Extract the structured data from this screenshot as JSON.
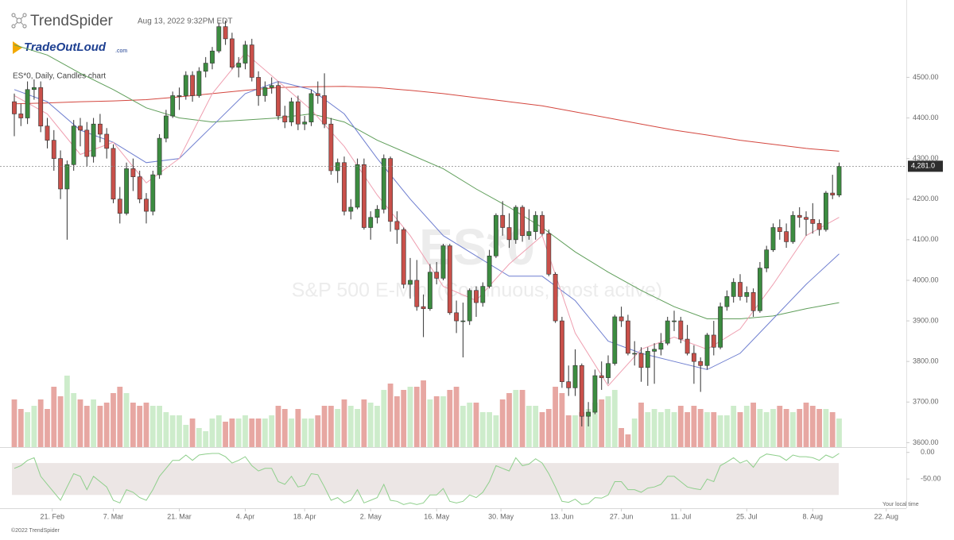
{
  "chart_data": {
    "type": "candlestick",
    "brand": "TrendSpider",
    "timestamp": "Aug 13, 2022 9:32PM EDT",
    "logo": "TradeOutLoud",
    "logo_suffix": ".com",
    "subtitle": "ES*0, Daily, Candles chart",
    "watermark": "ES*0",
    "watermark_subtitle": "S&P 500 E-Mini (Continuous, most active)",
    "x": [
      "Feb 11",
      "Feb 14",
      "Feb 15",
      "Feb 16",
      "Feb 17",
      "Feb 18",
      "Feb 22",
      "Feb 23",
      "Feb 24",
      "Feb 25",
      "Feb 28",
      "Mar 1",
      "Mar 2",
      "Mar 3",
      "Mar 4",
      "Mar 7",
      "Mar 8",
      "Mar 9",
      "Mar 10",
      "Mar 11",
      "Mar 14",
      "Mar 15",
      "Mar 16",
      "Mar 17",
      "Mar 18",
      "Mar 21",
      "Mar 22",
      "Mar 23",
      "Mar 24",
      "Mar 25",
      "Mar 28",
      "Mar 29",
      "Mar 30",
      "Mar 31",
      "Apr 1",
      "Apr 4",
      "Apr 5",
      "Apr 6",
      "Apr 7",
      "Apr 8",
      "Apr 11",
      "Apr 12",
      "Apr 13",
      "Apr 14",
      "Apr 18",
      "Apr 19",
      "Apr 20",
      "Apr 21",
      "Apr 22",
      "Apr 25",
      "Apr 26",
      "Apr 27",
      "Apr 28",
      "Apr 29",
      "May 2",
      "May 3",
      "May 4",
      "May 5",
      "May 6",
      "May 9",
      "May 10",
      "May 11",
      "May 12",
      "May 13",
      "May 16",
      "May 17",
      "May 18",
      "May 19",
      "May 20",
      "May 23",
      "May 24",
      "May 25",
      "May 26",
      "May 27",
      "May 31",
      "Jun 1",
      "Jun 2",
      "Jun 3",
      "Jun 6",
      "Jun 7",
      "Jun 8",
      "Jun 9",
      "Jun 10",
      "Jun 13",
      "Jun 14",
      "Jun 15",
      "Jun 16",
      "Jun 17",
      "Jun 21",
      "Jun 22",
      "Jun 23",
      "Jun 24",
      "Jun 27",
      "Jun 28",
      "Jun 29",
      "Jun 30",
      "Jul 1",
      "Jul 5",
      "Jul 6",
      "Jul 7",
      "Jul 8",
      "Jul 11",
      "Jul 12",
      "Jul 13",
      "Jul 14",
      "Jul 15",
      "Jul 18",
      "Jul 19",
      "Jul 20",
      "Jul 21",
      "Jul 22",
      "Jul 25",
      "Jul 26",
      "Jul 27",
      "Jul 28",
      "Jul 29",
      "Aug 1",
      "Aug 2",
      "Aug 3",
      "Aug 4",
      "Aug 5",
      "Aug 8",
      "Aug 9",
      "Aug 10",
      "Aug 11",
      "Aug 12"
    ],
    "open": [
      4440,
      4410,
      4400,
      4470,
      4475,
      4380,
      4345,
      4300,
      4225,
      4285,
      4380,
      4370,
      4305,
      4385,
      4360,
      4325,
      4200,
      4165,
      4275,
      4255,
      4200,
      4170,
      4260,
      4350,
      4405,
      4455,
      4455,
      4505,
      4455,
      4515,
      4535,
      4565,
      4625,
      4595,
      4525,
      4535,
      4580,
      4500,
      4455,
      4475,
      4480,
      4405,
      4390,
      4440,
      4385,
      4390,
      4460,
      4455,
      4385,
      4270,
      4290,
      4170,
      4180,
      4285,
      4130,
      4155,
      4175,
      4300,
      4145,
      4125,
      3990,
      4000,
      3935,
      3930,
      4020,
      4005,
      4085,
      3920,
      3900,
      3900,
      3975,
      3945,
      3985,
      4060,
      4160,
      4130,
      4100,
      4180,
      4110,
      4120,
      4160,
      4115,
      4015,
      3900,
      3750,
      3735,
      3790,
      3665,
      3675,
      3765,
      3760,
      3795,
      3910,
      3900,
      3820,
      3820,
      3785,
      3825,
      3830,
      3845,
      3900,
      3900,
      3855,
      3820,
      3800,
      3790,
      3865,
      3835,
      3935,
      3960,
      3995,
      3960,
      3970,
      3925,
      4030,
      4075,
      4130,
      4120,
      4095,
      4160,
      4155,
      4150,
      4140,
      4125,
      4215,
      4210
    ],
    "high": [
      4460,
      4435,
      4490,
      4495,
      4490,
      4400,
      4370,
      4320,
      4295,
      4395,
      4400,
      4390,
      4400,
      4410,
      4375,
      4335,
      4230,
      4290,
      4300,
      4270,
      4215,
      4270,
      4360,
      4420,
      4465,
      4475,
      4515,
      4515,
      4525,
      4550,
      4575,
      4635,
      4640,
      4610,
      4550,
      4590,
      4595,
      4515,
      4490,
      4500,
      4490,
      4430,
      4450,
      4455,
      4405,
      4470,
      4490,
      4510,
      4400,
      4300,
      4305,
      4200,
      4300,
      4300,
      4170,
      4185,
      4310,
      4305,
      4170,
      4130,
      4055,
      4050,
      3965,
      4040,
      4045,
      4090,
      4090,
      3950,
      3945,
      3980,
      3985,
      3995,
      4075,
      4165,
      4195,
      4165,
      4185,
      4185,
      4175,
      4170,
      4170,
      4125,
      4020,
      3910,
      3790,
      3830,
      3795,
      3700,
      3780,
      3800,
      3815,
      3915,
      3935,
      3915,
      3850,
      3835,
      3835,
      3845,
      3870,
      3910,
      3925,
      3910,
      3890,
      3840,
      3810,
      3870,
      3900,
      3945,
      3975,
      4005,
      4015,
      3985,
      3980,
      4045,
      4085,
      4140,
      4150,
      4140,
      4170,
      4180,
      4170,
      4190,
      4150,
      4220,
      4260,
      4290
    ],
    "low": [
      4355,
      4380,
      4385,
      4445,
      4365,
      4325,
      4270,
      4200,
      4100,
      4270,
      4330,
      4280,
      4290,
      4340,
      4300,
      4190,
      4140,
      4160,
      4220,
      4190,
      4140,
      4160,
      4250,
      4340,
      4400,
      4420,
      4445,
      4440,
      4450,
      4500,
      4520,
      4560,
      4580,
      4520,
      4500,
      4520,
      4490,
      4430,
      4440,
      4460,
      4395,
      4375,
      4380,
      4370,
      4370,
      4380,
      4435,
      4375,
      4260,
      4240,
      4160,
      4150,
      4175,
      4125,
      4100,
      4140,
      4165,
      4120,
      4090,
      3980,
      3955,
      3925,
      3860,
      3925,
      3990,
      4000,
      3915,
      3870,
      3810,
      3890,
      3910,
      3935,
      3980,
      4055,
      4110,
      4080,
      4090,
      4095,
      4100,
      4100,
      4110,
      4010,
      3895,
      3735,
      3715,
      3715,
      3640,
      3640,
      3670,
      3730,
      3745,
      3790,
      3885,
      3815,
      3790,
      3750,
      3740,
      3745,
      3815,
      3840,
      3875,
      3845,
      3815,
      3745,
      3725,
      3780,
      3815,
      3830,
      3925,
      3945,
      3950,
      3945,
      3910,
      3920,
      4020,
      4070,
      4100,
      4080,
      4090,
      4130,
      4110,
      4115,
      4110,
      4120,
      4200,
      4205
    ],
    "close": [
      4410,
      4400,
      4470,
      4475,
      4380,
      4345,
      4300,
      4225,
      4285,
      4380,
      4370,
      4305,
      4385,
      4360,
      4325,
      4200,
      4165,
      4275,
      4255,
      4200,
      4170,
      4260,
      4350,
      4405,
      4455,
      4455,
      4505,
      4455,
      4515,
      4535,
      4565,
      4625,
      4595,
      4525,
      4535,
      4580,
      4500,
      4455,
      4475,
      4480,
      4405,
      4390,
      4440,
      4385,
      4390,
      4460,
      4455,
      4385,
      4270,
      4290,
      4170,
      4180,
      4285,
      4130,
      4155,
      4175,
      4300,
      4145,
      4125,
      3990,
      4000,
      3935,
      3930,
      4020,
      4005,
      4085,
      3920,
      3900,
      3900,
      3975,
      3945,
      3985,
      4060,
      4160,
      4130,
      4100,
      4180,
      4110,
      4120,
      4160,
      4115,
      4015,
      3900,
      3750,
      3735,
      3790,
      3665,
      3675,
      3765,
      3760,
      3795,
      3910,
      3900,
      3820,
      3820,
      3785,
      3825,
      3830,
      3845,
      3900,
      3900,
      3855,
      3820,
      3800,
      3790,
      3865,
      3835,
      3935,
      3960,
      3995,
      3960,
      3970,
      3925,
      4030,
      4075,
      4130,
      4120,
      4095,
      4160,
      4155,
      4150,
      4140,
      4125,
      4215,
      4210,
      4281
    ],
    "up_color": "#3c8c40",
    "down_color": "#c9504a",
    "volume": [
      1.5,
      1.2,
      1.1,
      1.3,
      1.5,
      1.2,
      1.9,
      1.6,
      2.25,
      1.7,
      1.5,
      1.3,
      1.5,
      1.3,
      1.4,
      1.7,
      1.9,
      1.7,
      1.4,
      1.3,
      1.4,
      1.3,
      1.3,
      1.1,
      1.0,
      1.0,
      0.7,
      0.9,
      0.6,
      0.5,
      0.9,
      1.0,
      0.8,
      0.9,
      0.9,
      1.0,
      0.9,
      0.9,
      0.9,
      1.0,
      1.3,
      1.2,
      0.9,
      1.2,
      0.9,
      0.9,
      1.0,
      1.3,
      1.3,
      1.2,
      1.5,
      1.3,
      1.2,
      1.5,
      1.4,
      1.3,
      1.8,
      2.0,
      1.6,
      1.8,
      1.9,
      1.9,
      2.1,
      1.5,
      1.6,
      1.6,
      1.8,
      1.9,
      1.3,
      1.4,
      1.4,
      1.1,
      1.1,
      1.0,
      1.5,
      1.7,
      1.8,
      1.8,
      1.3,
      1.3,
      1.1,
      1.2,
      1.9,
      1.7,
      1.0,
      1.0,
      1.1,
      1.2,
      1.4,
      1.5,
      1.6,
      1.8,
      0.6,
      0.4,
      0.9,
      1.4,
      1.1,
      1.2,
      1.1,
      1.2,
      1.1,
      1.3,
      1.1,
      1.3,
      1.2,
      1.1,
      1.1,
      1.0,
      1.0,
      1.3,
      1.1,
      1.3,
      1.4,
      1.2,
      1.1,
      1.2,
      1.3,
      1.2,
      1.1,
      1.2,
      1.4,
      1.3,
      1.2,
      1.2,
      1.1,
      0.9
    ],
    "volume_up_color": "#cdeccb",
    "volume_down_color": "#e7a7a2",
    "vlim": [
      0,
      3
    ],
    "ylim": [
      3589,
      4675
    ],
    "yticks": [
      {
        "value": 3600,
        "label": "3600.00"
      },
      {
        "value": 3700,
        "label": "3700.00"
      },
      {
        "value": 3800,
        "label": "3800.00"
      },
      {
        "value": 3900,
        "label": "3900.00"
      },
      {
        "value": 4000,
        "label": "4000.00"
      },
      {
        "value": 4100,
        "label": "4100.00"
      },
      {
        "value": 4200,
        "label": "4200.00"
      },
      {
        "value": 4300,
        "label": "4300.00"
      },
      {
        "value": 4400,
        "label": "4400.00"
      },
      {
        "value": 4500,
        "label": "4500.00"
      }
    ],
    "xticks": [
      {
        "value": "Feb 21",
        "label": "21. Feb"
      },
      {
        "value": "Mar 7",
        "label": "7. Mar"
      },
      {
        "value": "Mar 21",
        "label": "21. Mar"
      },
      {
        "value": "Apr 4",
        "label": "4. Apr"
      },
      {
        "value": "Apr 18",
        "label": "18. Apr"
      },
      {
        "value": "May 2",
        "label": "2. May"
      },
      {
        "value": "May 16",
        "label": "16. May"
      },
      {
        "value": "May 30",
        "label": "30. May"
      },
      {
        "value": "Jun 13",
        "label": "13. Jun"
      },
      {
        "value": "Jun 27",
        "label": "27. Jun"
      },
      {
        "value": "Jul 11",
        "label": "11. Jul"
      },
      {
        "value": "Jul 25",
        "label": "25. Jul"
      },
      {
        "value": "Aug 8",
        "label": "8. Aug"
      },
      {
        "value": "Aug 22",
        "label": "22. Aug"
      }
    ],
    "last_label": "4,281.0",
    "moving_averages": [
      {
        "color": "#d4473f",
        "x": [
          "Feb 11",
          "Feb 18",
          "Feb 28",
          "Mar 7",
          "Mar 14",
          "Mar 21",
          "Mar 28",
          "Apr 4",
          "Apr 11",
          "Apr 19",
          "Apr 26",
          "May 3",
          "May 10",
          "May 17",
          "May 24",
          "Jun 1",
          "Jun 8",
          "Jun 15",
          "Jun 23",
          "Jun 30",
          "Jul 8",
          "Jul 15",
          "Jul 22",
          "Jul 29",
          "Aug 5",
          "Aug 12"
        ],
        "values": [
          4435,
          4437,
          4440,
          4442,
          4445,
          4452,
          4460,
          4468,
          4475,
          4477,
          4478,
          4475,
          4468,
          4460,
          4450,
          4440,
          4430,
          4415,
          4400,
          4385,
          4370,
          4358,
          4345,
          4335,
          4325,
          4318
        ]
      },
      {
        "color": "#5f9e5a",
        "x": [
          "Feb 11",
          "Feb 18",
          "Feb 28",
          "Mar 7",
          "Mar 14",
          "Mar 21",
          "Mar 28",
          "Apr 4",
          "Apr 11",
          "Apr 19",
          "Apr 26",
          "May 3",
          "May 10",
          "May 17",
          "May 24",
          "Jun 1",
          "Jun 8",
          "Jun 15",
          "Jun 23",
          "Jun 30",
          "Jul 8",
          "Jul 15",
          "Jul 22",
          "Jul 29",
          "Aug 5",
          "Aug 12"
        ],
        "values": [
          4580,
          4555,
          4510,
          4470,
          4425,
          4400,
          4390,
          4395,
          4400,
          4410,
          4390,
          4345,
          4310,
          4275,
          4225,
          4180,
          4130,
          4070,
          4020,
          3975,
          3935,
          3905,
          3905,
          3912,
          3930,
          3945
        ]
      },
      {
        "color": "#6f7fd0",
        "x": [
          "Feb 11",
          "Feb 18",
          "Feb 28",
          "Mar 7",
          "Mar 14",
          "Mar 21",
          "Mar 28",
          "Apr 4",
          "Apr 11",
          "Apr 19",
          "Apr 26",
          "May 3",
          "May 10",
          "May 17",
          "May 24",
          "Jun 1",
          "Jun 8",
          "Jun 15",
          "Jun 23",
          "Jun 30",
          "Jul 8",
          "Jul 15",
          "Jul 22",
          "Jul 29",
          "Aug 5",
          "Aug 12"
        ],
        "values": [
          4470,
          4440,
          4370,
          4340,
          4290,
          4300,
          4380,
          4460,
          4490,
          4470,
          4410,
          4300,
          4200,
          4110,
          4060,
          4010,
          4010,
          3950,
          3850,
          3820,
          3800,
          3780,
          3820,
          3905,
          3990,
          4065
        ]
      },
      {
        "color": "#ef9fb0",
        "x": [
          "Feb 11",
          "Feb 18",
          "Feb 28",
          "Mar 7",
          "Mar 14",
          "Mar 21",
          "Mar 28",
          "Apr 4",
          "Apr 11",
          "Apr 19",
          "Apr 26",
          "May 3",
          "May 10",
          "May 17",
          "May 24",
          "Jun 1",
          "Jun 8",
          "Jun 15",
          "Jun 23",
          "Jun 30",
          "Jul 8",
          "Jul 15",
          "Jul 22",
          "Jul 29",
          "Aug 5",
          "Aug 12"
        ],
        "values": [
          4455,
          4410,
          4310,
          4340,
          4240,
          4300,
          4460,
          4560,
          4490,
          4420,
          4330,
          4210,
          4110,
          3985,
          3950,
          4040,
          4110,
          3870,
          3740,
          3830,
          3860,
          3830,
          3880,
          3990,
          4110,
          4155
        ]
      }
    ],
    "oscillator": {
      "color": "#8fcf8c",
      "band_color": "#ece6e5",
      "bands": [
        -20,
        -80
      ],
      "ylim": [
        -105,
        10
      ],
      "yticks": [
        {
          "value": 0,
          "label": "0.00"
        },
        {
          "value": -50,
          "label": "-50.00"
        }
      ],
      "values": [
        -30,
        -25,
        -15,
        -10,
        -45,
        -60,
        -75,
        -90,
        -65,
        -40,
        -45,
        -70,
        -45,
        -55,
        -65,
        -90,
        -95,
        -70,
        -75,
        -85,
        -90,
        -70,
        -45,
        -30,
        -15,
        -15,
        -5,
        -15,
        -5,
        -3,
        -2,
        -2,
        -8,
        -20,
        -15,
        -8,
        -25,
        -35,
        -30,
        -30,
        -55,
        -60,
        -45,
        -65,
        -62,
        -40,
        -42,
        -65,
        -90,
        -85,
        -95,
        -90,
        -70,
        -95,
        -90,
        -85,
        -60,
        -90,
        -92,
        -98,
        -95,
        -98,
        -95,
        -80,
        -80,
        -68,
        -92,
        -95,
        -92,
        -80,
        -85,
        -75,
        -55,
        -25,
        -30,
        -35,
        -10,
        -25,
        -22,
        -12,
        -20,
        -40,
        -65,
        -92,
        -94,
        -88,
        -98,
        -96,
        -85,
        -86,
        -80,
        -55,
        -55,
        -70,
        -70,
        -75,
        -67,
        -65,
        -60,
        -45,
        -45,
        -55,
        -65,
        -68,
        -70,
        -50,
        -55,
        -25,
        -18,
        -10,
        -20,
        -15,
        -28,
        -10,
        -3,
        -5,
        -7,
        -15,
        -5,
        -8,
        -8,
        -10,
        -15,
        -5,
        -10,
        -2
      ]
    },
    "time_note": "Your local time",
    "copyright": "©2022 TrendSpider"
  }
}
